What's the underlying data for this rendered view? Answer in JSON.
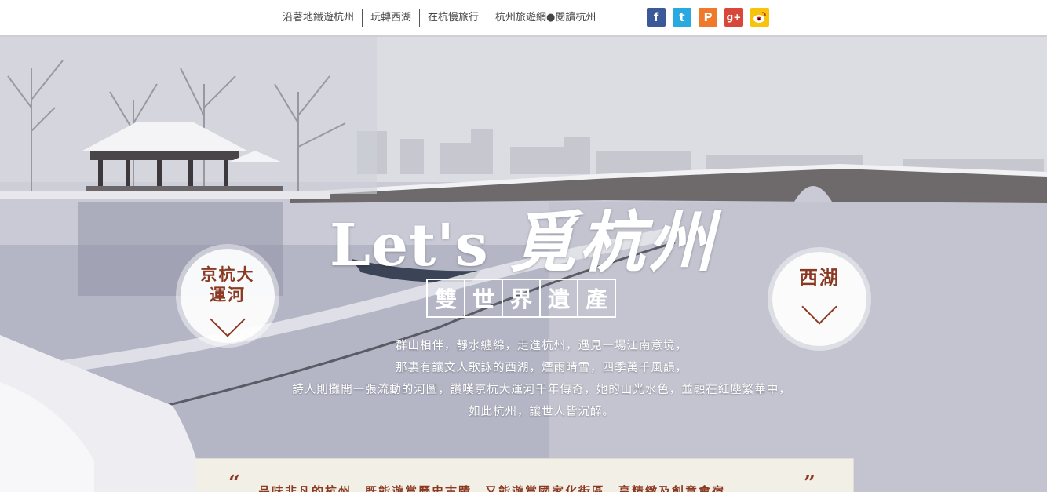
{
  "nav": {
    "links": [
      "沿著地鐵遊杭州",
      "玩轉西湖",
      "在杭慢旅行",
      "杭州旅遊網●閱讀杭州"
    ]
  },
  "social": [
    {
      "name": "facebook-icon",
      "glyph": "f",
      "color": "#3b5998"
    },
    {
      "name": "twitter-icon",
      "glyph": "t",
      "color": "#28a9e0"
    },
    {
      "name": "plurk-icon",
      "glyph": "P",
      "color": "#f07a2c"
    },
    {
      "name": "google-plus-icon",
      "glyph": "g+",
      "color": "#d9473a"
    },
    {
      "name": "weibo-icon",
      "glyph": "◉",
      "color": "#f6c40d"
    }
  ],
  "hero": {
    "title_en": "Let's",
    "title_cn": "覓杭州",
    "stamp": [
      "雙",
      "世",
      "界",
      "遺",
      "產"
    ],
    "paragraph": [
      "群山相伴，靜水纏綿，走進杭州，遇見一場江南意境，",
      "那裏有讓文人歌詠的西湖，煙雨晴雪，四季萬千風韻，",
      "詩人則攤開一張流動的河圖，讚嘆京杭大運河千年傳奇，她的山光水色，並融在紅塵繁華中，",
      "如此杭州，讓世人皆沉醉。"
    ],
    "left_circle": "京杭大運河",
    "right_circle": "西湖"
  },
  "quote": {
    "open": "“",
    "close": "”",
    "text": "品味非凡的杭州，既能遊賞歷史古蹟，又能遊賞國家化街區，享精緻及創意會宿"
  },
  "colors": {
    "accent": "#8a3a22",
    "nav_text": "#444444"
  }
}
